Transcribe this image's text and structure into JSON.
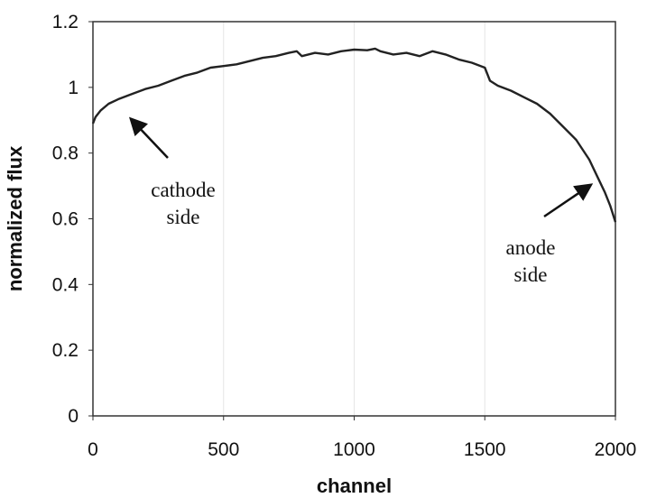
{
  "chart_data": {
    "type": "line",
    "xlabel": "channel",
    "ylabel": "normalized flux",
    "xlim": [
      0,
      2000
    ],
    "ylim": [
      0,
      1.2
    ],
    "xticks": [
      "0",
      "500",
      "1000",
      "1500",
      "2000"
    ],
    "yticks": [
      "0",
      "0.2",
      "0.4",
      "0.6",
      "0.8",
      "1",
      "1.2"
    ],
    "grid": "light vertical gridlines",
    "series": [
      {
        "color": "#222222",
        "x": [
          0,
          10,
          30,
          60,
          100,
          150,
          200,
          250,
          300,
          350,
          400,
          450,
          500,
          550,
          600,
          650,
          700,
          750,
          780,
          800,
          850,
          900,
          950,
          1000,
          1050,
          1080,
          1100,
          1150,
          1200,
          1250,
          1300,
          1350,
          1400,
          1450,
          1500,
          1520,
          1550,
          1600,
          1650,
          1700,
          1750,
          1800,
          1850,
          1900,
          1930,
          1960,
          1980,
          2000
        ],
        "y": [
          0.89,
          0.91,
          0.93,
          0.95,
          0.965,
          0.98,
          0.995,
          1.005,
          1.02,
          1.035,
          1.045,
          1.06,
          1.065,
          1.07,
          1.08,
          1.09,
          1.095,
          1.105,
          1.11,
          1.095,
          1.105,
          1.1,
          1.11,
          1.115,
          1.113,
          1.118,
          1.11,
          1.1,
          1.105,
          1.095,
          1.11,
          1.1,
          1.085,
          1.075,
          1.06,
          1.02,
          1.005,
          0.99,
          0.97,
          0.95,
          0.92,
          0.88,
          0.84,
          0.78,
          0.73,
          0.68,
          0.64,
          0.59
        ]
      }
    ],
    "annotations": [
      {
        "lines": [
          "cathode",
          "side"
        ],
        "arrow_to": [
          150,
          0.9
        ]
      },
      {
        "lines": [
          "anode",
          "side"
        ],
        "arrow_to": [
          1900,
          0.7
        ]
      }
    ]
  }
}
